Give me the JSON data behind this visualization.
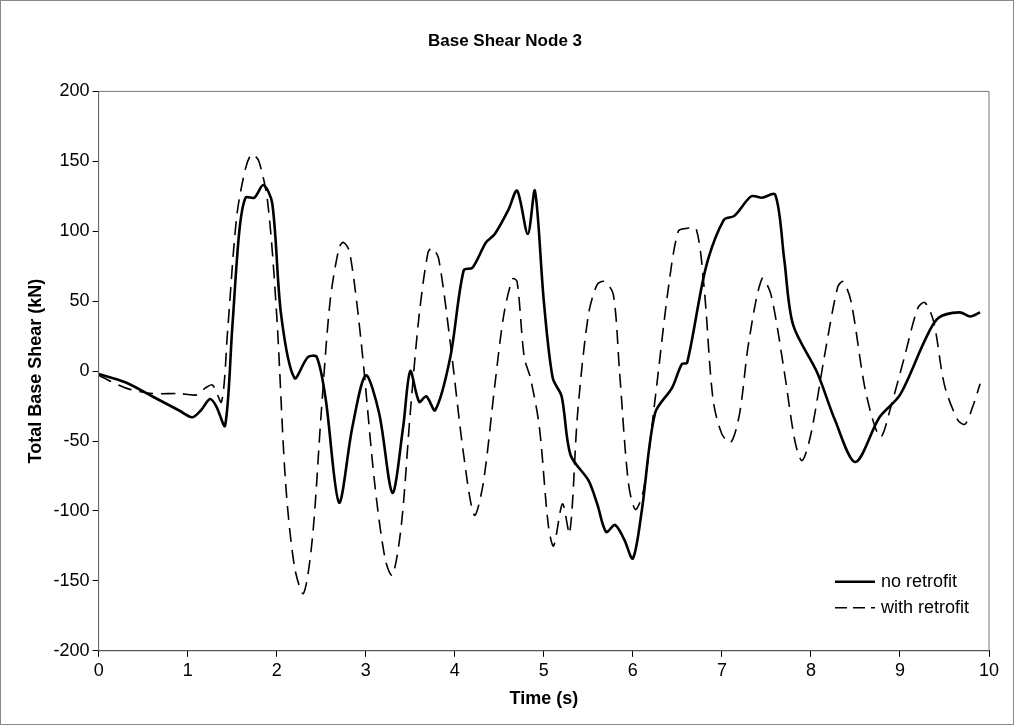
{
  "chart_data": {
    "type": "line",
    "title": "Base Shear Node 3",
    "xlabel": "Time (s)",
    "ylabel": "Total Base Shear (kN)",
    "xlim": [
      0,
      10
    ],
    "xticks": [
      0,
      1,
      2,
      3,
      4,
      5,
      6,
      7,
      8,
      9,
      10
    ],
    "ylim": [
      -200,
      200
    ],
    "yticks": [
      -200,
      -150,
      -100,
      -50,
      0,
      50,
      100,
      150,
      200
    ],
    "grid": false,
    "legend": "bottom right",
    "marker": "none",
    "series": [
      {
        "name": "no retrofit",
        "color": "#000000",
        "line_style": "solid",
        "x": [
          0,
          0.3,
          0.6,
          0.9,
          1.05,
          1.15,
          1.25,
          1.32,
          1.42,
          1.5,
          1.58,
          1.65,
          1.75,
          1.85,
          1.95,
          2.05,
          2.2,
          2.35,
          2.45,
          2.55,
          2.7,
          2.85,
          3.0,
          3.15,
          3.3,
          3.42,
          3.5,
          3.6,
          3.68,
          3.78,
          3.95,
          4.1,
          4.2,
          4.35,
          4.45,
          4.6,
          4.7,
          4.82,
          4.9,
          5.0,
          5.1,
          5.2,
          5.3,
          5.5,
          5.6,
          5.7,
          5.8,
          5.9,
          6.0,
          6.1,
          6.25,
          6.44,
          6.55,
          6.61,
          6.82,
          7.02,
          7.14,
          7.33,
          7.45,
          7.6,
          7.7,
          7.8,
          8.07,
          8.27,
          8.5,
          8.77,
          9.0,
          9.28,
          9.43,
          9.67,
          9.79,
          9.9
        ],
        "values": [
          -2,
          -8,
          -18,
          -28,
          -33,
          -28,
          -20,
          -25,
          -39,
          30,
          100,
          124,
          124,
          133,
          120,
          40,
          -5,
          10,
          10,
          -20,
          -94,
          -40,
          -3,
          -30,
          -87,
          -40,
          0,
          -22,
          -18,
          -28,
          10,
          72,
          74,
          92,
          98,
          115,
          129,
          98,
          129,
          50,
          -5,
          -18,
          -60,
          -78,
          -95,
          -115,
          -110,
          -120,
          -134,
          -100,
          -30,
          -12,
          5,
          6,
          74,
          108,
          111,
          125,
          124,
          126,
          80,
          33,
          -1,
          -35,
          -65,
          -33,
          -17,
          22,
          38,
          42,
          39,
          42
        ]
      },
      {
        "name": "with retrofit",
        "color": "#000000",
        "line_style": "dashed",
        "x": [
          0,
          0.3,
          0.6,
          0.9,
          1.1,
          1.2,
          1.28,
          1.38,
          1.45,
          1.55,
          1.65,
          1.72,
          1.8,
          1.9,
          2.0,
          2.1,
          2.2,
          2.3,
          2.4,
          2.5,
          2.6,
          2.7,
          2.75,
          2.82,
          2.95,
          3.1,
          3.22,
          3.3,
          3.4,
          3.5,
          3.6,
          3.7,
          3.75,
          3.82,
          3.95,
          4.1,
          4.22,
          4.32,
          4.45,
          4.55,
          4.65,
          4.7,
          4.78,
          4.85,
          4.95,
          5.05,
          5.11,
          5.21,
          5.29,
          5.38,
          5.5,
          5.6,
          5.68,
          5.78,
          5.85,
          5.95,
          6.03,
          6.12,
          6.25,
          6.4,
          6.51,
          6.6,
          6.71,
          6.8,
          6.9,
          7.0,
          7.1,
          7.2,
          7.3,
          7.45,
          7.55,
          7.7,
          7.82,
          7.9,
          8.0,
          8.15,
          8.3,
          8.36,
          8.45,
          8.6,
          8.72,
          8.79,
          8.9,
          9.05,
          9.2,
          9.28,
          9.38,
          9.5,
          9.65,
          9.73,
          9.82,
          9.9
        ],
        "values": [
          -3,
          -12,
          -16,
          -16,
          -17,
          -12,
          -10,
          -22,
          30,
          110,
          145,
          155,
          150,
          120,
          40,
          -80,
          -140,
          -159,
          -120,
          -30,
          50,
          88,
          92,
          85,
          20,
          -80,
          -135,
          -146,
          -110,
          -30,
          40,
          85,
          88,
          80,
          20,
          -60,
          -103,
          -80,
          -10,
          40,
          66,
          64,
          10,
          -5,
          -40,
          -110,
          -125,
          -95,
          -116,
          -30,
          40,
          62,
          64,
          55,
          0,
          -80,
          -99,
          -85,
          -20,
          60,
          100,
          102,
          102,
          60,
          -20,
          -45,
          -51,
          -30,
          20,
          66,
          55,
          0,
          -50,
          -64,
          -45,
          10,
          60,
          64,
          50,
          -10,
          -40,
          -47,
          -25,
          10,
          45,
          49,
          35,
          -10,
          -35,
          -38,
          -25,
          -9
        ]
      }
    ]
  }
}
